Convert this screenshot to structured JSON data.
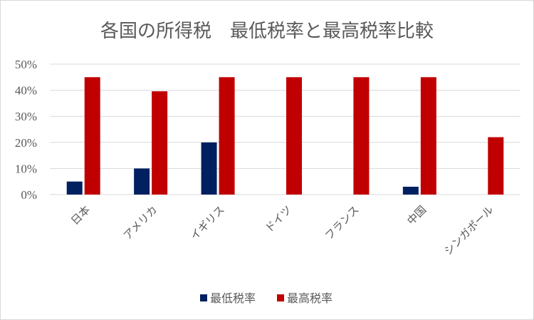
{
  "chart_data": {
    "type": "bar",
    "title": "各国の所得税　最低税率と最高税率比較",
    "categories": [
      "日本",
      "アメリカ",
      "イギリス",
      "ドイツ",
      "フランス",
      "中国",
      "シンガポール"
    ],
    "series": [
      {
        "name": "最低税率",
        "color": "#002060",
        "values": [
          5,
          10,
          20,
          0,
          0,
          3,
          0
        ]
      },
      {
        "name": "最高税率",
        "color": "#C00000",
        "values": [
          45,
          39.6,
          45,
          45,
          45,
          45,
          22
        ]
      }
    ],
    "ylim": [
      0,
      50
    ],
    "yticks": [
      "0%",
      "10%",
      "20%",
      "30%",
      "40%",
      "50%"
    ],
    "grid": true,
    "legend": "bottom"
  }
}
